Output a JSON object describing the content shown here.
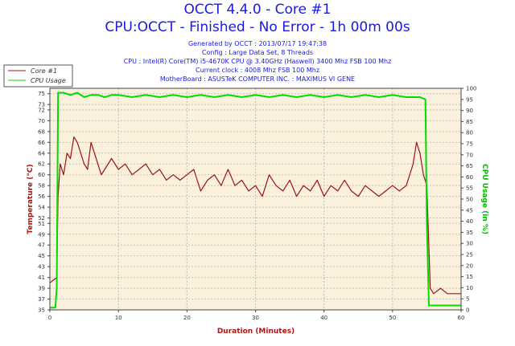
{
  "header": {
    "title": "OCCT 4.4.0 - Core #1",
    "subtitle": "CPU:OCCT - Finished - No Error - 1h 00m 00s",
    "info": [
      "Generated by OCCT : 2013/07/17 19:47:38",
      "Config : Large Data Set, 8 Threads",
      "CPU : Intel(R) Core(TM) i5-4670K CPU @ 3.40GHz (Haswell) 3400 Mhz FSB 100 Mhz",
      "Current clock : 4008 Mhz FSB 100 Mhz",
      "MotherBoard : ASUSTeK COMPUTER INC. : MAXIMUS VI GENE"
    ]
  },
  "chart_data": {
    "type": "line",
    "xlabel": "Duration (Minutes)",
    "ylabel_left": "Temperature (°C)",
    "ylabel_right": "CPU Usage (in %)",
    "x_range": [
      0,
      60
    ],
    "x_ticks": [
      0,
      10,
      20,
      30,
      40,
      50,
      60
    ],
    "y_left_range": [
      35,
      76
    ],
    "y_left_ticks": [
      35,
      37,
      39,
      41,
      43,
      45,
      47,
      49,
      51,
      52,
      54,
      56,
      58,
      60,
      62,
      64,
      66,
      68,
      70,
      72,
      73,
      75
    ],
    "y_right_range": [
      0,
      100
    ],
    "y_right_ticks": [
      0,
      5,
      10,
      15,
      20,
      25,
      30,
      35,
      40,
      45,
      50,
      55,
      60,
      65,
      70,
      75,
      80,
      85,
      90,
      95,
      100
    ],
    "grid": true,
    "legend_position": "top-left",
    "colors": {
      "plot_bg": "#fbf0dc",
      "grid": "#c0c0c0",
      "title": "#1a1ae0"
    },
    "series": [
      {
        "name": "Core #1",
        "color": "#9b1414",
        "axis": "left",
        "x": [
          0,
          0.5,
          1,
          1.2,
          1.5,
          2,
          2.5,
          3,
          3.5,
          4,
          4.5,
          5,
          5.5,
          6,
          6.5,
          7,
          7.5,
          8,
          9,
          10,
          11,
          12,
          13,
          14,
          15,
          16,
          17,
          18,
          19,
          20,
          21,
          22,
          23,
          24,
          25,
          26,
          27,
          28,
          29,
          30,
          31,
          32,
          33,
          34,
          35,
          36,
          37,
          38,
          39,
          40,
          41,
          42,
          43,
          44,
          45,
          46,
          47,
          48,
          49,
          50,
          51,
          52,
          53,
          53.5,
          54,
          54.5,
          55,
          55.5,
          56,
          57,
          58,
          59,
          60
        ],
        "y": [
          40,
          40.5,
          41,
          56,
          62,
          60,
          64,
          63,
          67,
          66,
          64,
          62,
          61,
          66,
          64,
          62,
          60,
          61,
          63,
          61,
          62,
          60,
          61,
          62,
          60,
          61,
          59,
          60,
          59,
          60,
          61,
          57,
          59,
          60,
          58,
          61,
          58,
          59,
          57,
          58,
          56,
          60,
          58,
          57,
          59,
          56,
          58,
          57,
          59,
          56,
          58,
          57,
          59,
          57,
          56,
          58,
          57,
          56,
          57,
          58,
          57,
          58,
          62,
          66,
          64,
          60,
          58,
          39,
          38,
          39,
          38,
          38,
          38
        ]
      },
      {
        "name": "CPU Usage",
        "color": "#00dd00",
        "axis": "right",
        "x": [
          0,
          0.8,
          1,
          1.2,
          2,
          3,
          4,
          5,
          6,
          7,
          8,
          9,
          10,
          12,
          14,
          16,
          18,
          20,
          22,
          24,
          26,
          28,
          30,
          32,
          34,
          36,
          38,
          40,
          42,
          44,
          46,
          48,
          50,
          52,
          54,
          54.8,
          55,
          55.3,
          56,
          57,
          58,
          59,
          60
        ],
        "y": [
          1,
          1,
          10,
          98,
          98,
          97,
          98,
          96,
          97,
          97,
          96,
          97,
          97,
          96,
          97,
          96,
          97,
          96,
          97,
          96,
          97,
          96,
          97,
          96,
          97,
          96,
          97,
          96,
          97,
          96,
          97,
          96,
          97,
          96,
          96,
          95,
          40,
          2,
          2,
          2,
          2,
          2,
          2
        ]
      }
    ]
  }
}
